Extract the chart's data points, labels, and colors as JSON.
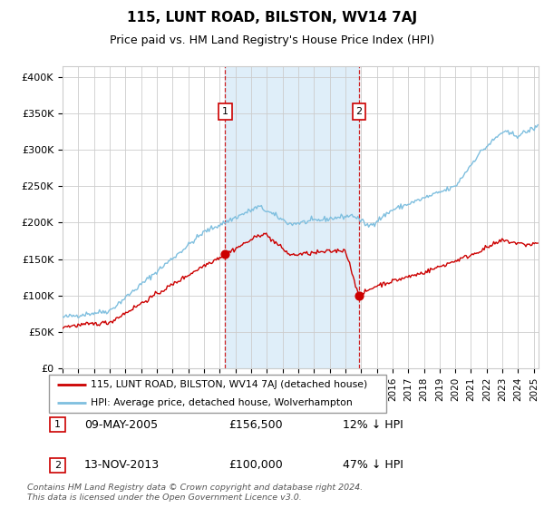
{
  "title": "115, LUNT ROAD, BILSTON, WV14 7AJ",
  "subtitle": "Price paid vs. HM Land Registry's House Price Index (HPI)",
  "ylabel_ticks": [
    "£0",
    "£50K",
    "£100K",
    "£150K",
    "£200K",
    "£250K",
    "£300K",
    "£350K",
    "£400K"
  ],
  "ytick_values": [
    0,
    50000,
    100000,
    150000,
    200000,
    250000,
    300000,
    350000,
    400000
  ],
  "ylim": [
    0,
    415000
  ],
  "xlim_start": 1995.0,
  "xlim_end": 2025.3,
  "hpi_color": "#7fbfdf",
  "price_color": "#cc0000",
  "sale1_price": 156500,
  "sale1_year": 2005.35,
  "sale2_price": 100000,
  "sale2_year": 2013.87,
  "legend_label1": "115, LUNT ROAD, BILSTON, WV14 7AJ (detached house)",
  "legend_label2": "HPI: Average price, detached house, Wolverhampton",
  "table_row1": [
    "1",
    "09-MAY-2005",
    "£156,500",
    "12% ↓ HPI"
  ],
  "table_row2": [
    "2",
    "13-NOV-2013",
    "£100,000",
    "47% ↓ HPI"
  ],
  "footnote": "Contains HM Land Registry data © Crown copyright and database right 2024.\nThis data is licensed under the Open Government Licence v3.0.",
  "background_color": "#ffffff",
  "grid_color": "#cccccc",
  "shade_color": "#d8eaf8"
}
